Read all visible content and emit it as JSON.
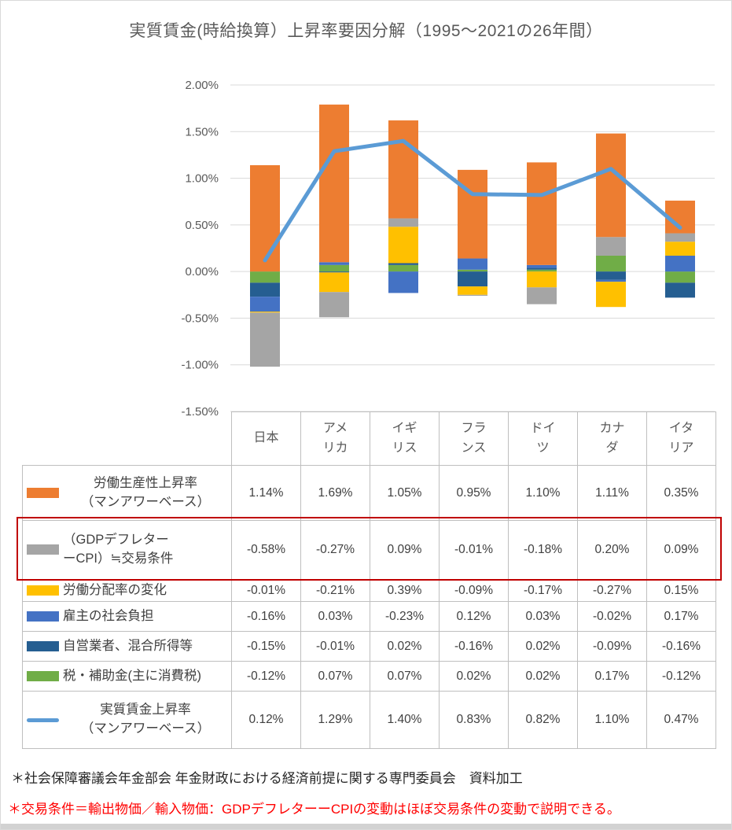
{
  "title": "実質賃金(時給換算）上昇率要因分解（1995～2021の26年間）",
  "chart_data": {
    "type": "bar",
    "subtype": "stacked-bar-with-line-overlay",
    "title": "実質賃金(時給換算）上昇率要因分解（1995～2021の26年間）",
    "categories": [
      "日本",
      "アメリカ",
      "イギリス",
      "フランス",
      "ドイツ",
      "カナダ",
      "イタリア"
    ],
    "category_header_lines": [
      [
        "日本"
      ],
      [
        "アメ",
        "リカ"
      ],
      [
        "イギ",
        "リス"
      ],
      [
        "フラ",
        "ンス"
      ],
      [
        "ドイ",
        "ツ"
      ],
      [
        "カナ",
        "ダ"
      ],
      [
        "イタ",
        "リア"
      ]
    ],
    "y_axis": {
      "min": -1.5,
      "max": 2.0,
      "step": 0.5,
      "tick_labels": [
        "2.00%",
        "1.50%",
        "1.00%",
        "0.50%",
        "0.00%",
        "-0.50%",
        "-1.00%",
        "-1.50%"
      ]
    },
    "grid": true,
    "legend_position": "table-left-column",
    "stacking": "positives and negatives stack outward from zero in reverse series order",
    "series": [
      {
        "name": "労働生産性上昇率（マンアワーベース）",
        "label_lines": [
          "労働生産性上昇率",
          "（マンアワーベース）"
        ],
        "type": "bar",
        "color": "#ED7D31",
        "center_label": true,
        "highlighted": false,
        "values": [
          1.14,
          1.69,
          1.05,
          0.95,
          1.1,
          1.11,
          0.35
        ]
      },
      {
        "name": "（GDPデフレターーCPI）≒交易条件",
        "label_lines": [
          "（GDPデフレター",
          "ーCPI）≒交易条件"
        ],
        "type": "bar",
        "color": "#A5A5A5",
        "center_label": false,
        "highlighted": true,
        "values": [
          -0.58,
          -0.27,
          0.09,
          -0.01,
          -0.18,
          0.2,
          0.09
        ]
      },
      {
        "name": "労働分配率の変化",
        "label_lines": [
          "労働分配率の変化"
        ],
        "type": "bar",
        "color": "#FFC000",
        "center_label": false,
        "highlighted": false,
        "values": [
          -0.01,
          -0.21,
          0.39,
          -0.09,
          -0.17,
          -0.27,
          0.15
        ]
      },
      {
        "name": "雇主の社会負担",
        "label_lines": [
          "雇主の社会負担"
        ],
        "type": "bar",
        "color": "#4472C4",
        "center_label": false,
        "highlighted": false,
        "values": [
          -0.16,
          0.03,
          -0.23,
          0.12,
          0.03,
          -0.02,
          0.17
        ]
      },
      {
        "name": "自営業者、混合所得等",
        "label_lines": [
          "自営業者、混合所得等"
        ],
        "type": "bar",
        "color": "#255E91",
        "center_label": false,
        "highlighted": false,
        "values": [
          -0.15,
          -0.01,
          0.02,
          -0.16,
          0.02,
          -0.09,
          -0.16
        ]
      },
      {
        "name": "税・補助金(主に消費税)",
        "label_lines": [
          "税・補助金(主に消費税)"
        ],
        "type": "bar",
        "color": "#70AD47",
        "center_label": false,
        "highlighted": false,
        "values": [
          -0.12,
          0.07,
          0.07,
          0.02,
          0.02,
          0.17,
          -0.12
        ]
      },
      {
        "name": "実質賃金上昇率（マンアワーベース）",
        "label_lines": [
          "実質賃金上昇率",
          "（マンアワーベース）"
        ],
        "type": "line",
        "color": "#5B9BD5",
        "center_label": true,
        "highlighted": false,
        "values": [
          0.12,
          1.29,
          1.4,
          0.83,
          0.82,
          1.1,
          0.47
        ]
      }
    ]
  },
  "colors": {
    "grid": "#D9D9D9",
    "axis_text": "#595959",
    "table_border": "#BFBFBF",
    "table_text": "#404040",
    "highlight_border": "#C00000",
    "footnote_red": "#FF0000"
  },
  "footnotes": [
    {
      "text": "＊社会保障審議会年金部会 年金財政における経済前提に関する専門委員会　資料加工",
      "color": "dark"
    },
    {
      "text": "＊交易条件＝輸出物価／輸入物価：GDPデフレターーCPIの変動はほぼ交易条件の変動で説明できる。",
      "color": "red"
    }
  ]
}
